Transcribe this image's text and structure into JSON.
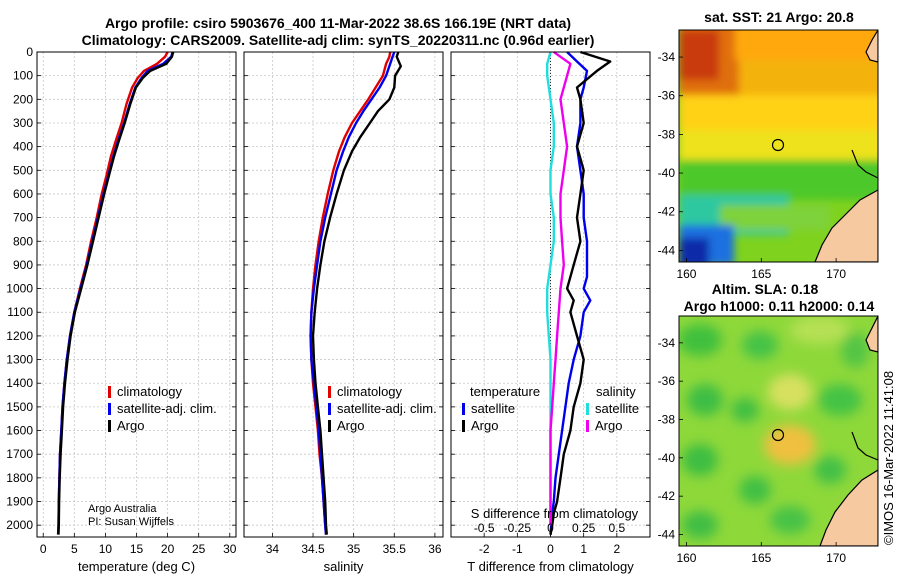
{
  "figure": {
    "title_line1": "Argo profile: csiro 5903676_400 11-Mar-2022 38.6S 166.19E (NRT data)",
    "title_line2": "Climatology: CARS2009. Satellite-adj clim: synTS_20220311.nc (0.96d earlier)",
    "credit_line1": "Argo Australia",
    "credit_line2": "PI: Susan Wijffels",
    "stamp": "©IMOS 16-Mar-2022 11:41:08"
  },
  "colors": {
    "argo": "#000000",
    "climatology": "#e00000",
    "satellite": "#0000ee",
    "sal_satellite": "#22dddd",
    "sal_argo": "#ee00ee"
  },
  "chart_data": [
    {
      "id": "temperature",
      "type": "line",
      "xlabel": "temperature (deg C)",
      "ylim": [
        0,
        2050
      ],
      "xlim": [
        -1,
        31
      ],
      "xticks": [
        0,
        5,
        10,
        15,
        20,
        25,
        30
      ],
      "yticks": [
        0,
        100,
        200,
        300,
        400,
        500,
        600,
        700,
        800,
        900,
        1000,
        1100,
        1200,
        1300,
        1400,
        1500,
        1600,
        1700,
        1800,
        1900,
        2000
      ],
      "grid": true,
      "legend": [
        {
          "label": "climatology",
          "color": "#e00000"
        },
        {
          "label": "satellite-adj. clim.",
          "color": "#0000ee"
        },
        {
          "label": "Argo",
          "color": "#000000"
        }
      ],
      "series": [
        {
          "name": "climatology",
          "color": "#e00000",
          "x": [
            20.0,
            19.6,
            18.3,
            16.2,
            15.2,
            14.3,
            13.4,
            12.6,
            11.6,
            10.9,
            10.2,
            9.4,
            8.6,
            7.7,
            6.9,
            5.9,
            5.0,
            4.3,
            3.8,
            3.4,
            3.1,
            2.9,
            2.7,
            2.6,
            2.5,
            2.45,
            2.4
          ],
          "y": [
            0,
            20,
            50,
            80,
            110,
            150,
            220,
            300,
            380,
            440,
            520,
            600,
            700,
            800,
            900,
            1000,
            1100,
            1200,
            1300,
            1400,
            1500,
            1600,
            1700,
            1800,
            1900,
            2000,
            2040
          ]
        },
        {
          "name": "satellite-adj. clim.",
          "color": "#0000ee",
          "x": [
            20.8,
            20.6,
            19.3,
            16.8,
            15.8,
            14.8,
            13.9,
            13.0,
            12.0,
            11.3,
            10.5,
            9.7,
            8.8,
            7.9,
            7.0,
            6.0,
            5.0,
            4.3,
            3.8,
            3.4,
            3.1,
            2.9,
            2.7,
            2.6,
            2.5,
            2.45,
            2.4
          ],
          "y": [
            0,
            20,
            50,
            80,
            110,
            150,
            220,
            300,
            380,
            440,
            520,
            600,
            700,
            800,
            900,
            1000,
            1100,
            1200,
            1300,
            1400,
            1500,
            1600,
            1700,
            1800,
            1900,
            2000,
            2040
          ]
        },
        {
          "name": "Argo",
          "color": "#000000",
          "x": [
            20.9,
            20.7,
            19.8,
            17.2,
            16.0,
            14.9,
            14.0,
            13.1,
            12.1,
            11.4,
            10.6,
            9.8,
            8.9,
            8.0,
            7.1,
            6.1,
            5.1,
            4.4,
            3.9,
            3.5,
            3.2,
            3.0,
            2.8,
            2.65,
            2.55,
            2.5,
            2.45
          ],
          "y": [
            0,
            20,
            50,
            80,
            110,
            150,
            220,
            300,
            380,
            440,
            520,
            600,
            700,
            800,
            900,
            1000,
            1100,
            1200,
            1300,
            1400,
            1500,
            1600,
            1700,
            1800,
            1900,
            2000,
            2040
          ]
        }
      ]
    },
    {
      "id": "salinity",
      "type": "line",
      "xlabel": "salinity",
      "ylim": [
        0,
        2050
      ],
      "xlim": [
        33.65,
        36.1
      ],
      "xticks": [
        34,
        34.5,
        35,
        35.5,
        36
      ],
      "grid": true,
      "legend": [
        {
          "label": "climatology",
          "color": "#e00000"
        },
        {
          "label": "satellite-adj. clim.",
          "color": "#0000ee"
        },
        {
          "label": "Argo",
          "color": "#000000"
        }
      ],
      "series": [
        {
          "name": "climatology",
          "color": "#e00000",
          "x": [
            35.45,
            35.44,
            35.4,
            35.36,
            35.27,
            35.18,
            35.08,
            34.98,
            34.89,
            34.82,
            34.75,
            34.68,
            34.62,
            34.57,
            34.53,
            34.5,
            34.48,
            34.47,
            34.48,
            34.5,
            34.53,
            34.56,
            34.58,
            34.61,
            34.63,
            34.65,
            34.66
          ],
          "y": [
            0,
            20,
            50,
            100,
            150,
            200,
            250,
            300,
            360,
            420,
            500,
            600,
            700,
            800,
            900,
            1000,
            1100,
            1200,
            1300,
            1400,
            1500,
            1600,
            1700,
            1800,
            1900,
            2000,
            2040
          ]
        },
        {
          "name": "satellite-adj. clim.",
          "color": "#0000ee",
          "x": [
            35.5,
            35.48,
            35.45,
            35.4,
            35.32,
            35.22,
            35.12,
            35.03,
            34.94,
            34.87,
            34.79,
            34.72,
            34.65,
            34.59,
            34.55,
            34.51,
            34.48,
            34.47,
            34.48,
            34.51,
            34.54,
            34.57,
            34.59,
            34.61,
            34.63,
            34.65,
            34.66
          ],
          "y": [
            0,
            20,
            50,
            100,
            150,
            200,
            250,
            300,
            360,
            420,
            500,
            600,
            700,
            800,
            900,
            1000,
            1100,
            1200,
            1300,
            1400,
            1500,
            1600,
            1700,
            1800,
            1900,
            2000,
            2040
          ]
        },
        {
          "name": "Argo",
          "color": "#000000",
          "x": [
            35.55,
            35.53,
            35.58,
            35.51,
            35.5,
            35.44,
            35.3,
            35.2,
            35.08,
            34.98,
            34.88,
            34.79,
            34.71,
            34.64,
            34.59,
            34.55,
            34.52,
            34.5,
            34.51,
            34.53,
            34.56,
            34.59,
            34.61,
            34.63,
            34.65,
            34.66,
            34.67
          ],
          "y": [
            0,
            20,
            60,
            100,
            150,
            200,
            250,
            300,
            360,
            420,
            500,
            600,
            700,
            800,
            900,
            1000,
            1100,
            1200,
            1300,
            1400,
            1500,
            1600,
            1700,
            1800,
            1900,
            2000,
            2040
          ]
        }
      ]
    },
    {
      "id": "difference",
      "type": "line",
      "xlabel": "T difference from climatology",
      "xlabel2": "S difference from climatology",
      "ylim": [
        0,
        2050
      ],
      "xlim": [
        -3,
        3
      ],
      "xticks": [
        -2,
        -1,
        0,
        1,
        2
      ],
      "xticks2": [
        {
          "value": -2,
          "label": "-0.5"
        },
        {
          "value": -1,
          "label": "-0.25"
        },
        {
          "value": 0,
          "label": "0"
        },
        {
          "value": 1,
          "label": "0.25"
        },
        {
          "value": 2,
          "label": "0.5"
        }
      ],
      "grid": true,
      "legend_temperature_title": "temperature",
      "legend_salinity_title": "salinity",
      "legend": [
        {
          "label": "satellite",
          "color": "#0000ee"
        },
        {
          "label": "Argo",
          "color": "#000000"
        },
        {
          "label": "satellite",
          "color": "#22dddd"
        },
        {
          "label": "Argo",
          "color": "#ee00ee"
        }
      ],
      "series": [
        {
          "name": "T diff satellite",
          "color": "#0000ee",
          "x": [
            0.5,
            0.8,
            1.1,
            1.0,
            0.9,
            0.9,
            0.8,
            0.9,
            1.0,
            1.0,
            1.1,
            1.1,
            1.1,
            1.0,
            1.2,
            1.0,
            0.9,
            0.7,
            0.55,
            0.45,
            0.35,
            0.25,
            0.15,
            0.1,
            0.05,
            0.02,
            0.0
          ],
          "y": [
            0,
            40,
            80,
            150,
            200,
            300,
            400,
            500,
            600,
            700,
            800,
            900,
            950,
            1000,
            1050,
            1100,
            1200,
            1300,
            1400,
            1500,
            1600,
            1700,
            1800,
            1900,
            1950,
            2000,
            2040
          ]
        },
        {
          "name": "T diff Argo",
          "color": "#000000",
          "x": [
            0.9,
            1.8,
            1.4,
            0.8,
            0.9,
            1.0,
            0.8,
            1.0,
            0.9,
            0.8,
            0.9,
            0.7,
            0.6,
            0.5,
            0.7,
            0.6,
            0.8,
            1.0,
            0.9,
            0.7,
            0.6,
            0.4,
            0.3,
            0.2,
            0.1,
            0.05,
            0.0
          ],
          "y": [
            0,
            40,
            80,
            150,
            200,
            300,
            400,
            500,
            600,
            700,
            800,
            900,
            950,
            1000,
            1050,
            1100,
            1200,
            1300,
            1400,
            1500,
            1600,
            1700,
            1800,
            1900,
            1950,
            2000,
            2040
          ]
        },
        {
          "name": "S diff satellite",
          "color": "#22dddd",
          "x": [
            0.0,
            -0.1,
            -0.1,
            0.0,
            0.1,
            0.1,
            0.0,
            0.0,
            0.1,
            0.1,
            0.0,
            -0.1,
            -0.1,
            -0.05,
            0.0,
            0.0,
            0.0,
            0.0,
            0.0,
            0.0
          ],
          "y": [
            0,
            50,
            100,
            200,
            300,
            400,
            500,
            600,
            700,
            800,
            900,
            1000,
            1100,
            1200,
            1300,
            1400,
            1500,
            1600,
            1800,
            2000
          ]
        },
        {
          "name": "S diff Argo",
          "color": "#ee00ee",
          "x": [
            0.1,
            0.6,
            0.5,
            0.3,
            0.4,
            0.5,
            0.4,
            0.3,
            0.3,
            0.35,
            0.4,
            0.3,
            0.25,
            0.2,
            0.15,
            0.1,
            0.05,
            0.0,
            0.0,
            0.0
          ],
          "y": [
            0,
            50,
            100,
            200,
            300,
            400,
            500,
            600,
            700,
            800,
            900,
            1000,
            1100,
            1200,
            1300,
            1400,
            1500,
            1600,
            1800,
            2000
          ]
        }
      ]
    },
    {
      "id": "sst_map",
      "type": "heatmap",
      "title": "sat. SST: 21 Argo: 20.8",
      "xticks": [
        160,
        165,
        170
      ],
      "yticks": [
        -34,
        -36,
        -38,
        -40,
        -42,
        -44
      ],
      "xlim": [
        159.5,
        172.8
      ],
      "ylim": [
        -44.6,
        -32.6
      ],
      "argo_position": {
        "lon": 166.19,
        "lat": -38.6
      }
    },
    {
      "id": "sla_map",
      "type": "heatmap",
      "title_line1": "Altim. SLA: 0.18",
      "title_line2": "Argo h1000: 0.11 h2000: 0.14",
      "xticks": [
        160,
        165,
        170
      ],
      "yticks": [
        -34,
        -36,
        -38,
        -40,
        -42,
        -44
      ],
      "xlim": [
        159.5,
        172.8
      ],
      "ylim": [
        -44.6,
        -32.6
      ],
      "argo_position": {
        "lon": 166.19,
        "lat": -38.6
      }
    }
  ]
}
